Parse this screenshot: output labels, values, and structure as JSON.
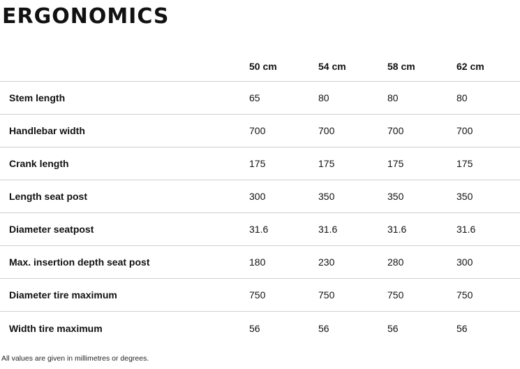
{
  "title": "ERGONOMICS",
  "table": {
    "columns": [
      "50 cm",
      "54 cm",
      "58 cm",
      "62 cm"
    ],
    "rows": [
      {
        "label": "Stem length",
        "values": [
          "65",
          "80",
          "80",
          "80"
        ]
      },
      {
        "label": "Handlebar width",
        "values": [
          "700",
          "700",
          "700",
          "700"
        ]
      },
      {
        "label": "Crank length",
        "values": [
          "175",
          "175",
          "175",
          "175"
        ]
      },
      {
        "label": "Length seat post",
        "values": [
          "300",
          "350",
          "350",
          "350"
        ]
      },
      {
        "label": "Diameter seatpost",
        "values": [
          "31.6",
          "31.6",
          "31.6",
          "31.6"
        ]
      },
      {
        "label": "Max. insertion depth seat post",
        "values": [
          "180",
          "230",
          "280",
          "300"
        ]
      },
      {
        "label": "Diameter tire maximum",
        "values": [
          "750",
          "750",
          "750",
          "750"
        ]
      },
      {
        "label": "Width tire maximum",
        "values": [
          "56",
          "56",
          "56",
          "56"
        ]
      }
    ]
  },
  "footnote": "All values are given in millimetres or degrees."
}
